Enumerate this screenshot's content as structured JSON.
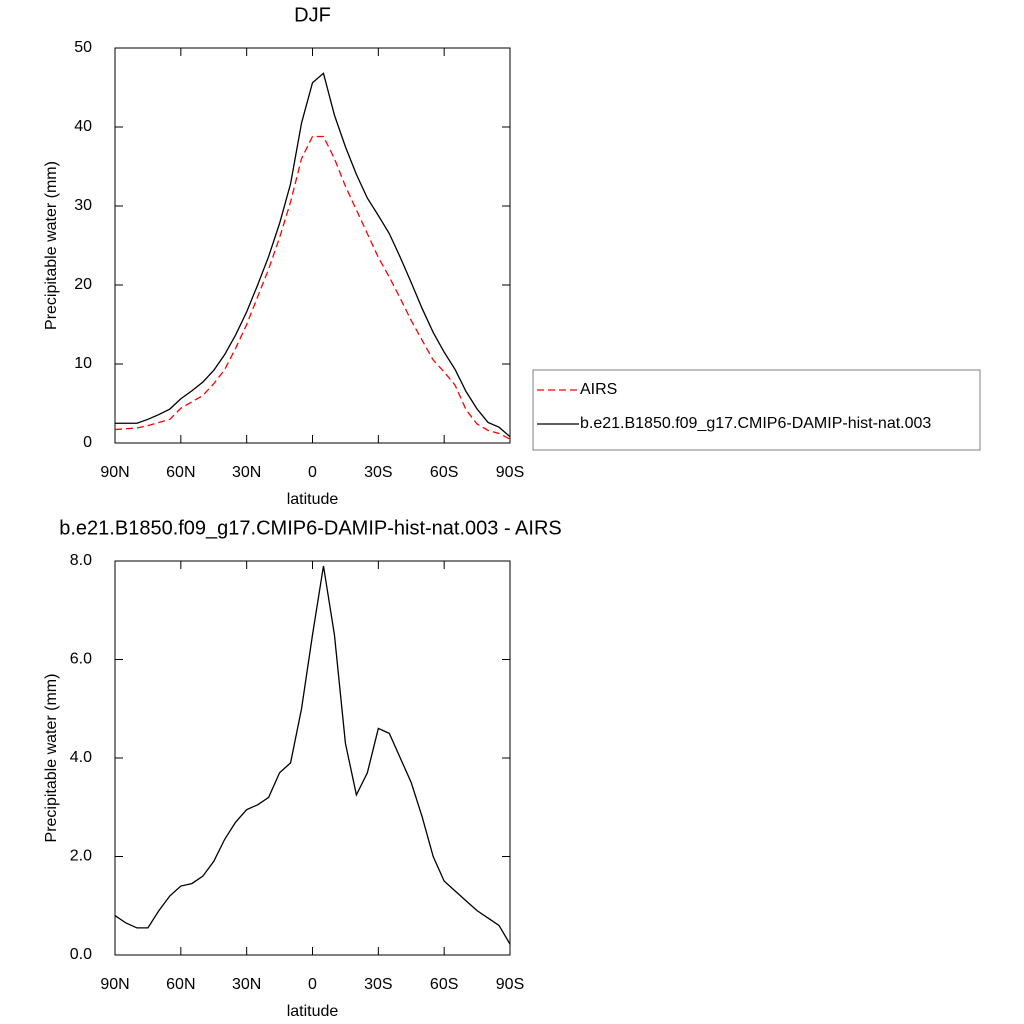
{
  "chart_data": [
    {
      "type": "line",
      "title": "DJF",
      "xlabel": "latitude",
      "ylabel": "Precipitable water (mm)",
      "x": [
        90,
        85,
        80,
        75,
        70,
        65,
        60,
        55,
        50,
        45,
        40,
        35,
        30,
        25,
        20,
        15,
        10,
        5,
        0,
        -5,
        -10,
        -15,
        -20,
        -25,
        -30,
        -35,
        -40,
        -45,
        -50,
        -55,
        -60,
        -65,
        -70,
        -75,
        -80,
        -85,
        -90
      ],
      "series": [
        {
          "name": "AIRS",
          "color": "#ff0000",
          "line_style": "dashed",
          "values": [
            1.7,
            1.8,
            1.9,
            2.2,
            2.6,
            3.0,
            4.4,
            5.2,
            6.0,
            7.5,
            9.3,
            12.0,
            15.0,
            18.5,
            22.0,
            26.0,
            30.5,
            36.0,
            38.8,
            38.8,
            36.0,
            32.5,
            29.5,
            26.5,
            23.5,
            21.0,
            18.3,
            15.5,
            13.0,
            10.5,
            9.0,
            7.3,
            4.2,
            2.4,
            1.6,
            1.2,
            0.5
          ]
        },
        {
          "name": "b.e21.B1850.f09_g17.CMIP6-DAMIP-hist-nat.003",
          "color": "#000000",
          "line_style": "solid",
          "values": [
            2.5,
            2.5,
            2.5,
            3.0,
            3.6,
            4.3,
            5.6,
            6.6,
            7.7,
            9.2,
            11.2,
            13.7,
            16.6,
            20.0,
            23.6,
            27.8,
            32.8,
            40.5,
            45.6,
            46.8,
            41.5,
            37.5,
            34.0,
            31.0,
            28.8,
            26.5,
            23.5,
            20.3,
            17.0,
            14.0,
            11.5,
            9.3,
            6.5,
            4.3,
            2.6,
            2.0,
            0.8
          ]
        }
      ],
      "xlim": [
        90,
        -90
      ],
      "xticks": [
        {
          "value": 90,
          "label": "90N"
        },
        {
          "value": 60,
          "label": "60N"
        },
        {
          "value": 30,
          "label": "30N"
        },
        0,
        {
          "value": -30,
          "label": "30S"
        },
        {
          "value": -60,
          "label": "60S"
        },
        {
          "value": -90,
          "label": "90S"
        }
      ],
      "ylim": [
        0,
        50
      ],
      "yticks": [
        0,
        10,
        20,
        30,
        40,
        50
      ],
      "legend": "right"
    },
    {
      "type": "line",
      "title": "b.e21.B1850.f09_g17.CMIP6-DAMIP-hist-nat.003 - AIRS",
      "xlabel": "latitude",
      "ylabel": "Precipitable water (mm)",
      "x": [
        90,
        85,
        80,
        75,
        70,
        65,
        60,
        55,
        50,
        45,
        40,
        35,
        30,
        25,
        20,
        15,
        10,
        5,
        0,
        -5,
        -10,
        -15,
        -20,
        -25,
        -30,
        -35,
        -40,
        -45,
        -50,
        -55,
        -60,
        -65,
        -70,
        -75,
        -80,
        -85,
        -90
      ],
      "color": "#000000",
      "values": [
        0.8,
        0.65,
        0.55,
        0.55,
        0.9,
        1.2,
        1.4,
        1.45,
        1.6,
        1.9,
        2.35,
        2.7,
        2.95,
        3.05,
        3.2,
        3.7,
        3.9,
        5.0,
        6.5,
        7.9,
        6.5,
        4.3,
        3.25,
        3.7,
        4.6,
        4.5,
        4.0,
        3.5,
        2.8,
        2.0,
        1.5,
        1.3,
        1.1,
        0.9,
        0.75,
        0.6,
        0.22
      ],
      "xlim": [
        90,
        -90
      ],
      "xticks": [
        {
          "value": 90,
          "label": "90N"
        },
        {
          "value": 60,
          "label": "60N"
        },
        {
          "value": 30,
          "label": "30N"
        },
        0,
        {
          "value": -30,
          "label": "30S"
        },
        {
          "value": -60,
          "label": "60S"
        },
        {
          "value": -90,
          "label": "90S"
        }
      ],
      "ylim": [
        0,
        8
      ],
      "yticks": [
        {
          "value": 0,
          "label": "0.0"
        },
        {
          "value": 2,
          "label": "2.0"
        },
        {
          "value": 4,
          "label": "4.0"
        },
        {
          "value": 6,
          "label": "6.0"
        },
        {
          "value": 8,
          "label": "8.0"
        }
      ]
    }
  ]
}
